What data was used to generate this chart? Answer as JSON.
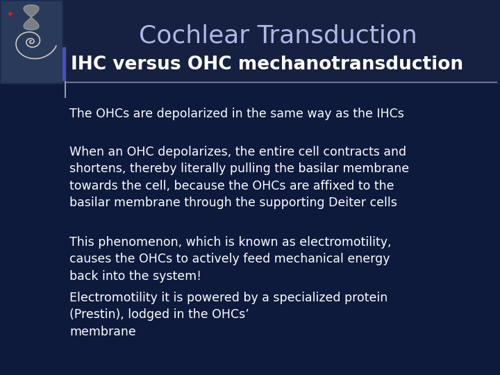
{
  "title": "Cochlear Transduction",
  "subtitle": "IHC versus OHC mechanotransduction",
  "bullet1": "The OHCs are depolarized in the same way as the IHCs",
  "bullet2": "When an OHC depolarizes, the entire cell contracts and\nshortens, thereby literally pulling the basilar membrane\ntowards the cell, because the OHCs are affixed to the\nbasilar membrane through the supporting Deiter cells",
  "bullet3": "This phenomenon, which is known as electromotility,\ncauses the OHCs to actively feed mechanical energy\nback into the system!",
  "bullet4": "Electromotility it is powered by a specialized protein\n(Prestin), lodged in the OHCs’\nmembrane",
  "bg_color": "#0e1a3c",
  "title_color": "#b0b8e8",
  "subtitle_color": "#ffffff",
  "text_color": "#ffffff",
  "line_color": "#9999bb",
  "left_bar_color": "#4455aa",
  "title_fontsize": 26,
  "subtitle_fontsize": 19,
  "body_fontsize": 12.5,
  "img_bg": "#1a2a50",
  "header_bg": "#0e1a3c",
  "header_bg2": "#162040"
}
